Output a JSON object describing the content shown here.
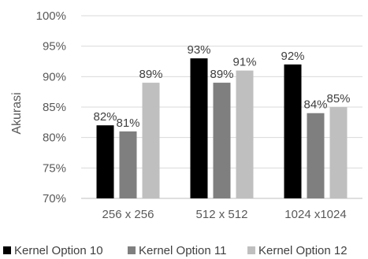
{
  "chart_data": {
    "type": "bar",
    "categories": [
      "256 x 256",
      "512 x 512",
      "1024 x1024"
    ],
    "series": [
      {
        "name": "Kernel Option 10",
        "values": [
          82,
          93,
          92
        ],
        "color": "#000000"
      },
      {
        "name": "Kernel Option 11",
        "values": [
          81,
          89,
          84
        ],
        "color": "#7f7f7f"
      },
      {
        "name": "Kernel Option 12",
        "values": [
          89,
          91,
          85
        ],
        "color": "#bfbfbf"
      }
    ],
    "data_labels": [
      [
        "82%",
        "93%",
        "92%"
      ],
      [
        "81%",
        "89%",
        "84%"
      ],
      [
        "89%",
        "91%",
        "85%"
      ]
    ],
    "title": "",
    "xlabel": "",
    "ylabel": "Akurasi",
    "ylim": [
      70,
      100
    ],
    "yticks": [
      70,
      75,
      80,
      85,
      90,
      95,
      100
    ],
    "ytick_labels": [
      "70%",
      "75%",
      "80%",
      "85%",
      "90%",
      "95%",
      "100%"
    ],
    "grid": true,
    "legend_position": "bottom"
  }
}
